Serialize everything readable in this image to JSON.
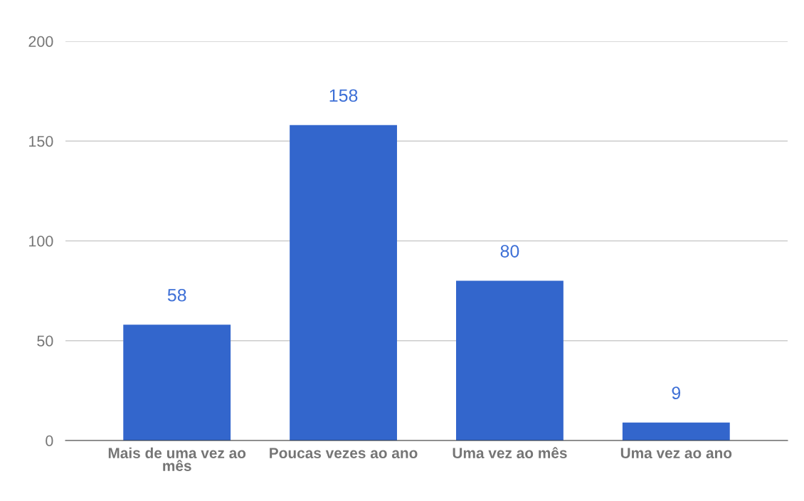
{
  "chart_data": {
    "type": "bar",
    "categories": [
      "Mais de uma vez ao mês",
      "Poucas vezes ao ano",
      "Uma vez ao mês",
      "Uma vez ao ano"
    ],
    "values": [
      58,
      158,
      80,
      9
    ],
    "color": "#3366cc",
    "ylim": [
      0,
      200
    ],
    "yticks": [
      0,
      50,
      100,
      150,
      200
    ],
    "grid": "y",
    "data_labels": true,
    "legend": false
  }
}
